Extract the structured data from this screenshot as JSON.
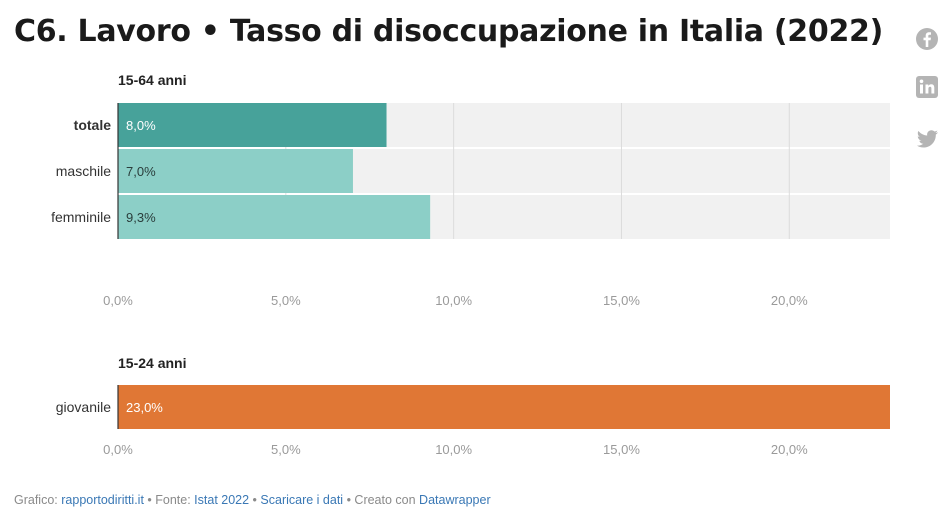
{
  "title": "C6. Lavoro • Tasso di disoccupazione in Italia (2022)",
  "share": {
    "facebook_icon": "facebook-icon",
    "linkedin_icon": "linkedin-icon",
    "twitter_icon": "twitter-icon"
  },
  "chart_data": [
    {
      "type": "bar",
      "orientation": "horizontal",
      "title": "15-64 anni",
      "categories": [
        "totale",
        "maschile",
        "femminile"
      ],
      "values": [
        8.0,
        7.0,
        9.3
      ],
      "value_labels": [
        "8,0%",
        "7,0%",
        "9,3%"
      ],
      "xlim": [
        0,
        23
      ],
      "ticks": [
        0,
        5,
        10,
        15,
        20
      ],
      "tick_labels": [
        "0,0%",
        "5,0%",
        "10,0%",
        "15,0%",
        "20,0%"
      ],
      "colors": [
        "#47a29a",
        "#8ccfc7",
        "#8ccfc7"
      ],
      "bold_categories": [
        "totale"
      ],
      "background_color": "#f1f1f1",
      "grid": true
    },
    {
      "type": "bar",
      "orientation": "horizontal",
      "title": "15-24 anni",
      "categories": [
        "giovanile"
      ],
      "values": [
        23.0
      ],
      "value_labels": [
        "23,0%"
      ],
      "xlim": [
        0,
        23
      ],
      "ticks": [
        0,
        5,
        10,
        15,
        20
      ],
      "tick_labels": [
        "0,0%",
        "5,0%",
        "10,0%",
        "15,0%",
        "20,0%"
      ],
      "colors": [
        "#e07735"
      ],
      "background_color": "#f1f1f1",
      "grid": true
    }
  ],
  "footer": {
    "grafico_label": "Grafico: ",
    "grafico_link": "rapportodiritti.it",
    "sep1": " • Fonte: ",
    "fonte_link": "Istat 2022",
    "sep2": " • ",
    "download_link": "Scaricare i dati",
    "sep3": " • Creato con ",
    "tool_link": "Datawrapper"
  }
}
